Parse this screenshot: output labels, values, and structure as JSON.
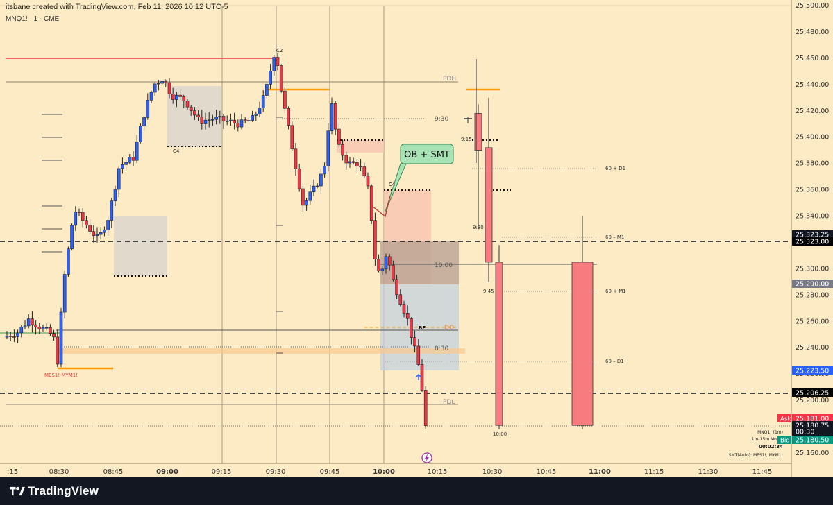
{
  "header": {
    "created_by": "itsbane created with TradingView.com, Feb 11, 2026 10:12 UTC-5",
    "symbol": "MNQ1! · 1 · CME"
  },
  "footer": {
    "brand": "TradingView"
  },
  "colors": {
    "background": "#fdebc6",
    "bull": "#2962ff",
    "bear": "#f23645",
    "big_bear": "#f77c80",
    "orange": "#ff9800",
    "label_green": "#a7e3b5"
  },
  "chart_data": {
    "type": "candlestick",
    "title": "",
    "ylim": [
      25150,
      25500
    ],
    "y_ticks": [
      "25,160.00",
      "25,180.00",
      "25,200.00",
      "25,220.00",
      "25,240.00",
      "25,260.00",
      "25,280.00",
      "25,300.00",
      "25,320.00",
      "25,340.00",
      "25,360.00",
      "25,380.00",
      "25,400.00",
      "25,420.00",
      "25,440.00",
      "25,460.00",
      "25,480.00",
      "25,500.00"
    ],
    "x_ticks": [
      {
        "label": ":15",
        "bold": false
      },
      {
        "label": "08:30",
        "bold": false
      },
      {
        "label": "08:45",
        "bold": false
      },
      {
        "label": "09:00",
        "bold": true
      },
      {
        "label": "09:15",
        "bold": false
      },
      {
        "label": "09:30",
        "bold": false
      },
      {
        "label": "09:45",
        "bold": false
      },
      {
        "label": "10:00",
        "bold": true
      },
      {
        "label": "10:15",
        "bold": false
      },
      {
        "label": "10:30",
        "bold": false
      },
      {
        "label": "10:45",
        "bold": false
      },
      {
        "label": "11:00",
        "bold": true
      },
      {
        "label": "11:15",
        "bold": false
      },
      {
        "label": "11:30",
        "bold": false
      },
      {
        "label": "11:45",
        "bold": false
      }
    ],
    "price_tags": [
      {
        "text": "25,323.25",
        "bg": "#131722",
        "fg": "#ffffff"
      },
      {
        "text": "25,323.00",
        "bg": "#000000",
        "fg": "#ffffff"
      },
      {
        "text": "25,290.00",
        "bg": "#787b86",
        "fg": "#ffffff"
      },
      {
        "text": "25,223.50",
        "bg": "#2962ff",
        "fg": "#ffffff"
      },
      {
        "text": "25,206.25",
        "bg": "#000000",
        "fg": "#ffffff"
      },
      {
        "text": "25,181.00",
        "bg": "#f23645",
        "fg": "#ffffff",
        "label": "Ask"
      },
      {
        "text": "25,180.75",
        "bg": "#131722",
        "fg": "#ffffff"
      },
      {
        "text": "00:30",
        "bg": "#131722",
        "fg": "#ffffff"
      },
      {
        "text": "25,180.50",
        "bg": "#089981",
        "fg": "#ffffff",
        "label": "Bid"
      }
    ],
    "annotations": {
      "callout": "OB + SMT",
      "pdh": "PDH",
      "pdl": "PDL",
      "do": "DO",
      "be": "BE",
      "t930": "9:30",
      "t830": "8:30",
      "t1000": "10:00",
      "c2": "C2",
      "c4a": "C4",
      "c4b": "C4",
      "htf1": "60 + D1",
      "htf2": "60 – M1",
      "htf3": "60 + M1",
      "htf4": "60 – D1",
      "t915": "9:15",
      "t930b": "9:30",
      "t945": "9:45",
      "t1000b": "10:00",
      "smt_left": "MES1! MYM1!",
      "info1": "MNQ1! (1m)",
      "info2": "1m-15m Model",
      "info3": "00:02:34",
      "info4": "SMT(Auto): MES1!, MYM1!"
    }
  }
}
